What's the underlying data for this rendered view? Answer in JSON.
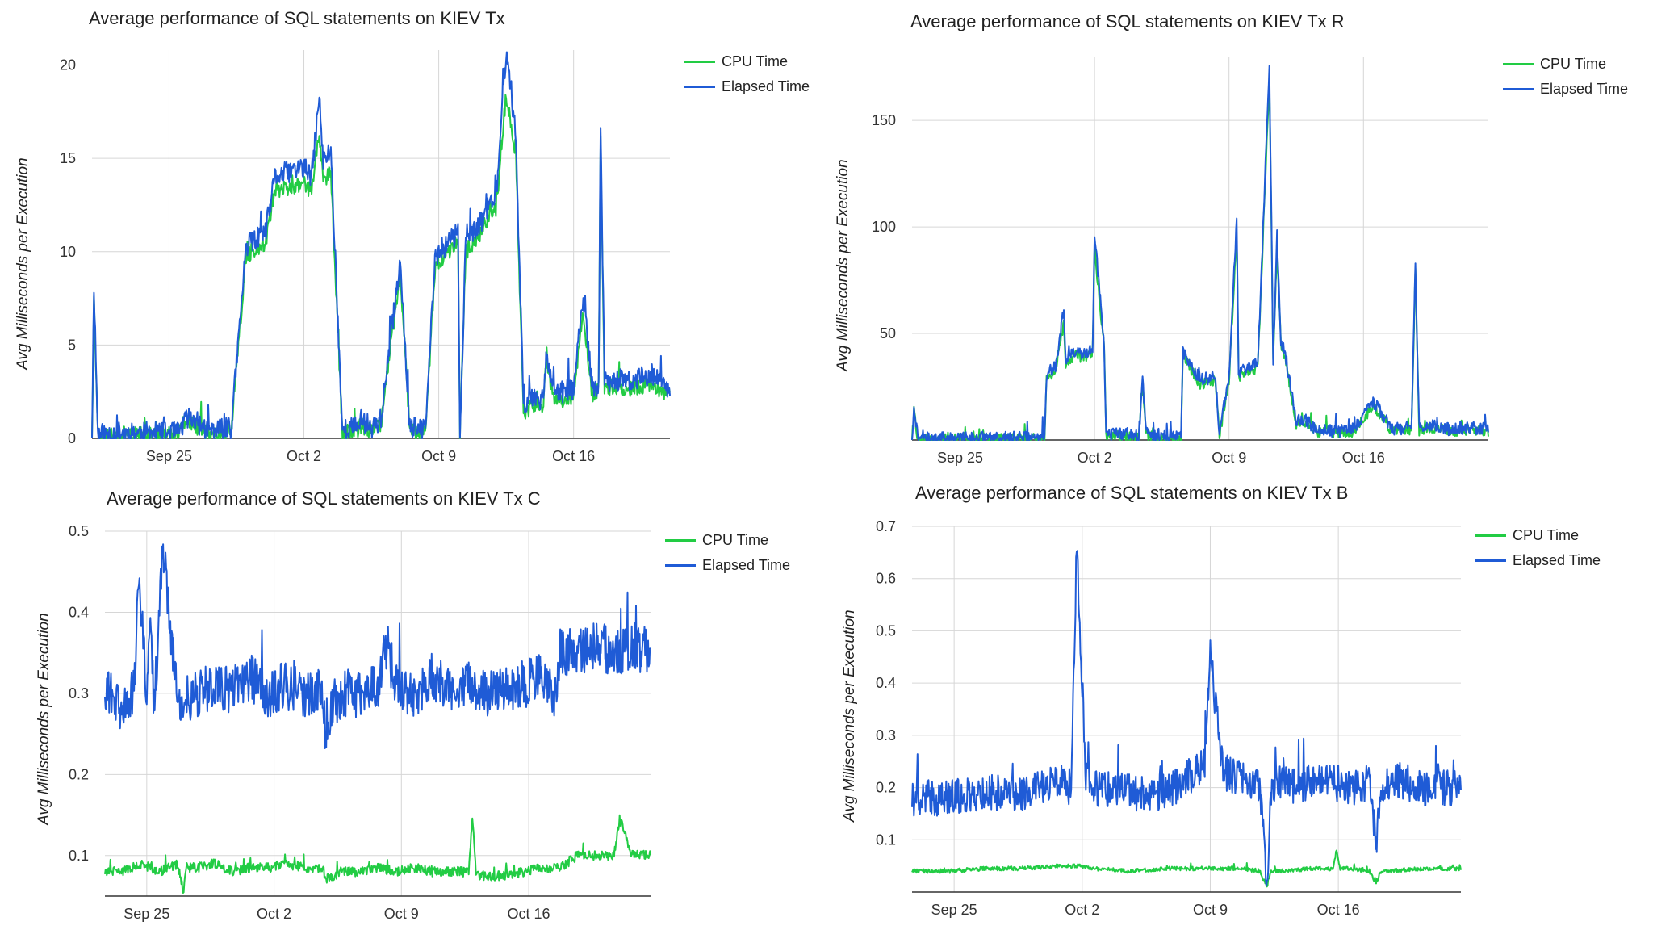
{
  "colors": {
    "cpu": "#22cc44",
    "elapsed": "#1f5bd6",
    "grid": "#d6d6d6",
    "axis": "#333333"
  },
  "chart_data": [
    {
      "type": "line",
      "title": "Average performance of SQL statements on KIEV Tx",
      "ylabel": "Avg Milliseconds per Execution",
      "xlabel": "",
      "xlim": [
        0,
        30
      ],
      "ylim": [
        0,
        20.8
      ],
      "yticks": [
        0,
        5,
        10,
        15,
        20
      ],
      "xticks": [
        {
          "x": 4,
          "label": "Sep 25"
        },
        {
          "x": 11,
          "label": "Oct 2"
        },
        {
          "x": 18,
          "label": "Oct 9"
        },
        {
          "x": 25,
          "label": "Oct 16"
        }
      ],
      "legend": [
        "CPU Time",
        "Elapsed Time"
      ],
      "series": [
        {
          "name": "Elapsed Time",
          "x": [
            0,
            0.1,
            0.3,
            1.5,
            3,
            4.5,
            5,
            6,
            7,
            7.1,
            7.2,
            8,
            9,
            9.5,
            10,
            10.8,
            11,
            11.4,
            11.8,
            12,
            12.4,
            13,
            13.4,
            13.6,
            13.8,
            14,
            14.5,
            15,
            16,
            16.5,
            17,
            17.3,
            17.8,
            18,
            18.5,
            19,
            19.1,
            19.4,
            20,
            20.6,
            21,
            21.5,
            22,
            22.4,
            23,
            23.4,
            23.6,
            24,
            25,
            25.5,
            26,
            26.3,
            26.4,
            26.6,
            27,
            28,
            29,
            30
          ],
          "y": [
            0,
            8.3,
            0.2,
            0.3,
            0.3,
            0.3,
            1.2,
            0.4,
            0.5,
            1,
            0.2,
            10.3,
            11,
            14,
            14.2,
            14.5,
            14.5,
            14,
            18.3,
            14.8,
            15.5,
            0.4,
            0.6,
            0.5,
            0.8,
            1,
            0.6,
            1,
            9.6,
            0.6,
            0.5,
            0.4,
            9.5,
            10,
            10.5,
            11,
            0.2,
            10.5,
            11.2,
            12.5,
            13.2,
            20.8,
            16.2,
            1.8,
            2.4,
            2,
            4.7,
            2.3,
            2.7,
            7.5,
            2.4,
            3,
            16.6,
            3,
            3.2,
            3,
            3.5,
            2.6
          ],
          "noise": 0.6,
          "seed": 11
        },
        {
          "name": "CPU Time",
          "x": [
            0,
            0.1,
            0.3,
            1.5,
            3,
            4.5,
            5,
            6,
            7,
            7.1,
            7.2,
            8,
            9,
            9.5,
            10,
            10.8,
            11,
            11.4,
            11.8,
            12,
            12.4,
            13,
            13.4,
            13.6,
            13.8,
            14,
            14.5,
            15,
            16,
            16.5,
            17,
            17.3,
            17.8,
            18,
            18.5,
            19,
            19.1,
            19.4,
            20,
            20.6,
            21,
            21.5,
            22,
            22.4,
            23,
            23.4,
            23.6,
            24,
            25,
            25.5,
            26,
            26.3,
            26.4,
            26.6,
            27,
            28,
            29,
            30
          ],
          "y": [
            0,
            7.6,
            0.1,
            0.2,
            0.2,
            0.2,
            0.9,
            0.3,
            0.3,
            0.8,
            0.1,
            9.8,
            10.5,
            13.3,
            13.4,
            13.6,
            13.6,
            13.2,
            16.5,
            13.8,
            14.2,
            0.2,
            0.4,
            0.3,
            0.5,
            0.7,
            0.4,
            0.8,
            9,
            0.4,
            0.3,
            0.2,
            9,
            9.5,
            10,
            10.5,
            0.1,
            10,
            10.7,
            11.8,
            12.3,
            18.5,
            15.2,
            1.3,
            1.9,
            1.6,
            4.2,
            1.9,
            2.3,
            6.8,
            2,
            2.6,
            15.8,
            2.6,
            2.8,
            2.6,
            3,
            2.2
          ],
          "noise": 0.45,
          "seed": 12
        }
      ]
    },
    {
      "type": "line",
      "title": "Average performance of SQL statements on KIEV Tx R",
      "ylabel": "Avg Milliseconds per Execution",
      "xlabel": "",
      "xlim": [
        0,
        30
      ],
      "ylim": [
        0,
        180
      ],
      "yticks": [
        50,
        100,
        150
      ],
      "xticks": [
        {
          "x": 2.5,
          "label": "Sep 25"
        },
        {
          "x": 9.5,
          "label": "Oct 2"
        },
        {
          "x": 16.5,
          "label": "Oct 9"
        },
        {
          "x": 23.5,
          "label": "Oct 16"
        }
      ],
      "legend": [
        "CPU Time",
        "Elapsed Time"
      ],
      "series": [
        {
          "name": "Elapsed Time",
          "x": [
            0,
            0.1,
            0.3,
            4,
            6.9,
            7,
            7.5,
            7.9,
            8,
            8.5,
            9,
            9.4,
            9.5,
            10,
            10.1,
            11,
            11.8,
            12,
            12.2,
            13,
            14,
            14.1,
            15,
            15.8,
            16,
            16.5,
            16.9,
            17,
            17.4,
            18,
            18.6,
            18.8,
            19,
            19.2,
            19.4,
            20,
            20.4,
            21,
            22,
            23,
            24,
            25,
            26,
            26.2,
            26.4,
            27,
            28,
            29,
            30
          ],
          "y": [
            0,
            16,
            1,
            1,
            1,
            30,
            35,
            62,
            38,
            42,
            40,
            44,
            96,
            45,
            2,
            3,
            2,
            27,
            3,
            2,
            1,
            42,
            28,
            30,
            3,
            30,
            104,
            32,
            33,
            36,
            176,
            38,
            96,
            46,
            42,
            8,
            10,
            5,
            4,
            5,
            18,
            5,
            6,
            83,
            5,
            7,
            5,
            6,
            5
          ],
          "noise": 3,
          "seed": 21
        },
        {
          "name": "CPU Time",
          "x": [
            0,
            0.1,
            0.3,
            4,
            6.9,
            7,
            7.5,
            7.9,
            8,
            8.5,
            9,
            9.4,
            9.5,
            10,
            10.1,
            11,
            11.8,
            12,
            12.2,
            13,
            14,
            14.1,
            15,
            15.8,
            16,
            16.5,
            16.9,
            17,
            17.4,
            18,
            18.6,
            18.8,
            19,
            19.2,
            19.4,
            20,
            20.4,
            21,
            22,
            23,
            24,
            25,
            26,
            26.2,
            26.4,
            27,
            28,
            29,
            30
          ],
          "y": [
            0,
            14,
            0.5,
            0.5,
            0.5,
            28,
            33,
            55,
            36,
            40,
            38,
            42,
            90,
            43,
            1,
            2,
            1,
            25,
            2,
            1,
            0.5,
            40,
            26,
            28,
            2,
            28,
            98,
            30,
            31,
            34,
            170,
            36,
            90,
            44,
            40,
            7,
            9,
            4,
            3,
            4,
            16,
            4,
            5,
            80,
            4,
            6,
            4,
            5,
            4
          ],
          "noise": 2.5,
          "seed": 22
        }
      ]
    },
    {
      "type": "line",
      "title": "Average performance of SQL statements on KIEV Tx C",
      "ylabel": "Avg Milliseconds per Execution",
      "xlabel": "",
      "xlim": [
        0,
        30
      ],
      "ylim": [
        0.05,
        0.5
      ],
      "yticks": [
        0.1,
        0.2,
        0.3,
        0.4,
        0.5
      ],
      "xticks": [
        {
          "x": 2.3,
          "label": "Sep 25"
        },
        {
          "x": 9.3,
          "label": "Oct 2"
        },
        {
          "x": 16.3,
          "label": "Oct 9"
        },
        {
          "x": 23.3,
          "label": "Oct 16"
        }
      ],
      "legend": [
        "CPU Time",
        "Elapsed Time"
      ],
      "series": [
        {
          "name": "Elapsed Time",
          "x": [
            0,
            0.8,
            1.6,
            1.9,
            2.3,
            2.5,
            2.7,
            3.2,
            4,
            5,
            6,
            7,
            8,
            9,
            10,
            11,
            12,
            12.1,
            13,
            14,
            15,
            15.5,
            16,
            17,
            18,
            19,
            20,
            21,
            22,
            23,
            24,
            24.8,
            25,
            26,
            27,
            28,
            29,
            30
          ],
          "y": [
            0.31,
            0.28,
            0.3,
            0.45,
            0.3,
            0.41,
            0.28,
            0.48,
            0.29,
            0.3,
            0.31,
            0.3,
            0.32,
            0.3,
            0.31,
            0.3,
            0.3,
            0.26,
            0.3,
            0.3,
            0.31,
            0.36,
            0.31,
            0.3,
            0.32,
            0.3,
            0.31,
            0.3,
            0.31,
            0.31,
            0.32,
            0.3,
            0.35,
            0.35,
            0.36,
            0.35,
            0.36,
            0.35
          ],
          "noise": 0.03,
          "seed": 31
        },
        {
          "name": "CPU Time",
          "x": [
            0,
            1,
            2,
            3,
            4,
            4.3,
            4.5,
            5,
            6,
            7,
            8,
            9,
            10,
            11,
            12,
            12.1,
            13,
            14,
            15,
            16,
            17,
            18,
            19,
            20,
            20.2,
            20.4,
            21,
            22,
            23,
            24,
            25,
            26,
            27,
            28,
            28.3,
            29,
            30
          ],
          "y": [
            0.08,
            0.08,
            0.09,
            0.08,
            0.09,
            0.055,
            0.085,
            0.085,
            0.09,
            0.08,
            0.085,
            0.085,
            0.09,
            0.085,
            0.085,
            0.07,
            0.08,
            0.08,
            0.085,
            0.08,
            0.085,
            0.08,
            0.08,
            0.08,
            0.15,
            0.075,
            0.075,
            0.075,
            0.08,
            0.085,
            0.085,
            0.1,
            0.1,
            0.1,
            0.145,
            0.1,
            0.1
          ],
          "noise": 0.006,
          "seed": 32
        }
      ]
    },
    {
      "type": "line",
      "title": "Average performance of SQL statements on KIEV Tx B",
      "ylabel": "Avg Milliseconds per Execution",
      "xlabel": "",
      "xlim": [
        0,
        30
      ],
      "ylim": [
        0,
        0.7
      ],
      "yticks": [
        0.1,
        0.2,
        0.3,
        0.4,
        0.5,
        0.6,
        0.7
      ],
      "xticks": [
        {
          "x": 2.3,
          "label": "Sep 25"
        },
        {
          "x": 9.3,
          "label": "Oct 2"
        },
        {
          "x": 16.3,
          "label": "Oct 9"
        },
        {
          "x": 23.3,
          "label": "Oct 16"
        }
      ],
      "legend": [
        "CPU Time",
        "Elapsed Time"
      ],
      "series": [
        {
          "name": "Elapsed Time",
          "x": [
            0,
            2,
            4,
            6,
            8,
            8.7,
            9,
            9.5,
            10,
            12,
            14,
            15,
            16,
            16.3,
            17,
            18,
            19,
            19.4,
            19.6,
            20,
            21,
            22,
            23,
            24,
            25,
            25.4,
            25.6,
            26,
            27,
            28,
            29,
            30
          ],
          "y": [
            0.18,
            0.18,
            0.19,
            0.19,
            0.21,
            0.2,
            0.66,
            0.22,
            0.2,
            0.19,
            0.19,
            0.22,
            0.24,
            0.45,
            0.23,
            0.22,
            0.2,
            0.01,
            0.2,
            0.21,
            0.2,
            0.22,
            0.21,
            0.2,
            0.21,
            0.09,
            0.2,
            0.21,
            0.21,
            0.2,
            0.2,
            0.2
          ],
          "noise": 0.035,
          "seed": 41
        },
        {
          "name": "CPU Time",
          "x": [
            0,
            2,
            4,
            6,
            8,
            9,
            10,
            12,
            14,
            16,
            18,
            19,
            19.4,
            19.6,
            20,
            22,
            23,
            23.2,
            23.4,
            24,
            25,
            25.4,
            25.6,
            26,
            28,
            30
          ],
          "y": [
            0.04,
            0.04,
            0.045,
            0.045,
            0.05,
            0.05,
            0.045,
            0.04,
            0.045,
            0.045,
            0.045,
            0.04,
            0.01,
            0.04,
            0.04,
            0.045,
            0.045,
            0.08,
            0.045,
            0.045,
            0.04,
            0.015,
            0.04,
            0.04,
            0.045,
            0.045
          ],
          "noise": 0.004,
          "seed": 42
        }
      ]
    }
  ]
}
